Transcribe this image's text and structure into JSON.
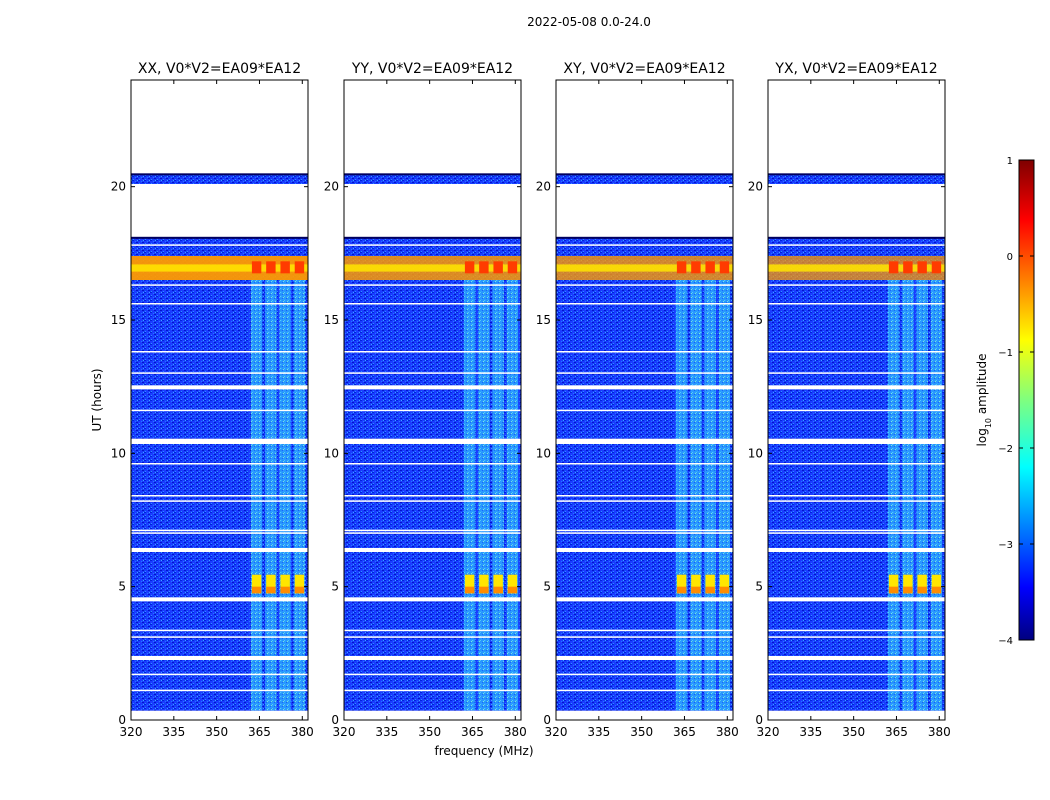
{
  "figure_title": "2022-05-08 0.0-24.0",
  "chart_data": {
    "type": "heatmap",
    "suptitle": "2022-05-08 0.0-24.0",
    "xlabel": "frequency (MHz)",
    "ylabel": "UT (hours)",
    "xlim": [
      320,
      382
    ],
    "ylim": [
      0,
      24
    ],
    "xticks": [
      320,
      335,
      350,
      365,
      380
    ],
    "yticks": [
      0,
      5,
      10,
      15,
      20
    ],
    "panels": [
      {
        "title": "XX, V0*V2=EA09*EA12",
        "flare_level": 0.95
      },
      {
        "title": "YY, V0*V2=EA09*EA12",
        "flare_level": 0.85
      },
      {
        "title": "XY, V0*V2=EA09*EA12",
        "flare_level": 0.8
      },
      {
        "title": "YX, V0*V2=EA09*EA12",
        "flare_level": 0.75
      }
    ],
    "data_gaps_hours": [
      [
        0,
        0.35
      ],
      [
        2.25,
        2.4
      ],
      [
        4.45,
        4.6
      ],
      [
        6.3,
        6.45
      ],
      [
        10.35,
        10.55
      ],
      [
        12.4,
        12.55
      ],
      [
        18.1,
        20.1
      ],
      [
        20.45,
        24
      ]
    ],
    "thin_gaps_hours": [
      1.1,
      1.7,
      3.1,
      3.35,
      7.0,
      7.1,
      8.2,
      8.4,
      9.6,
      11.6,
      13.0,
      13.8,
      15.6,
      16.3,
      17.8
    ],
    "rfi_bands_mhz": [
      [
        362,
        366
      ],
      [
        367,
        371
      ],
      [
        372,
        376
      ],
      [
        377,
        381
      ]
    ],
    "flare_hours": [
      16.5,
      17.4
    ],
    "burst_hours": [
      4.75,
      5.45
    ],
    "colorbar": {
      "label_prefix": "log",
      "label_sub": "10",
      "label_suffix": " amplitude",
      "vmin": -4,
      "vmax": 1,
      "ticks": [
        1,
        0,
        -1,
        -2,
        -3,
        -4
      ],
      "tick_labels": [
        "1",
        "0",
        "−1",
        "−2",
        "−3",
        "−4"
      ],
      "colormap": "jet"
    }
  }
}
